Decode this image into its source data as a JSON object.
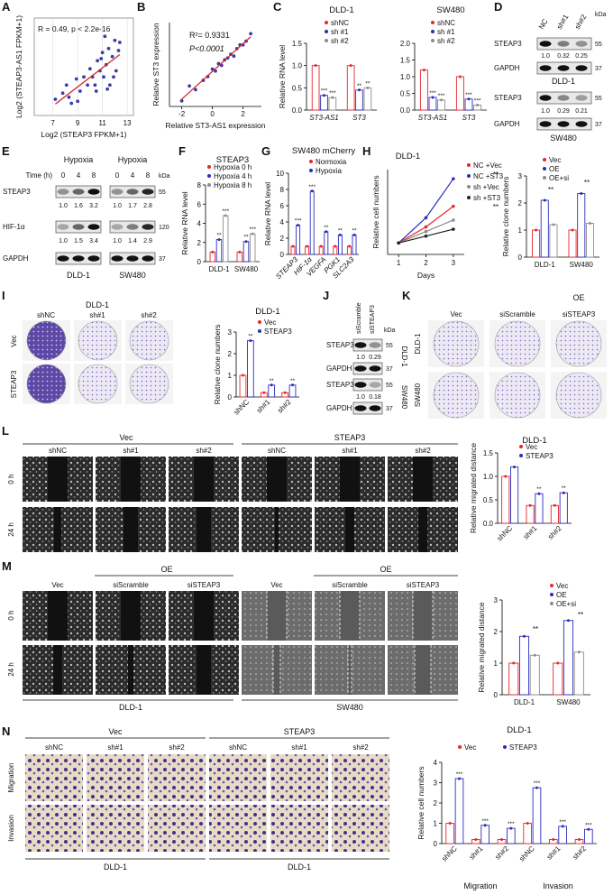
{
  "panels": [
    {
      "letter": "A",
      "charts": [
        {
          "type": "scatter",
          "xlabel": "Log2 (STEAP3 FPKM+1)",
          "ylabel": "Log2 (STEAP3-AS1 FPKM+1)",
          "annotations": [
            "R = 0.49, p < 2.2e-16"
          ],
          "xlim": [
            5.5,
            13.5
          ],
          "ylim": [
            -0.3,
            4.5
          ],
          "xticks": [
            7,
            9,
            11,
            13
          ],
          "grid": true,
          "color": "#3b3ba8",
          "fit_color": "#d42a2a",
          "x": [
            7.2,
            7.8,
            8.1,
            8.5,
            8.9,
            9.2,
            9.5,
            9.8,
            10.0,
            10.2,
            10.4,
            10.6,
            10.8,
            11.0,
            11.1,
            11.3,
            11.5,
            11.6,
            11.8,
            12.0,
            12.1,
            12.3,
            9.0,
            10.5,
            11.2,
            11.9,
            10.9,
            12.4,
            8.3,
            11.4
          ],
          "values": [
            0.5,
            0.8,
            1.2,
            0.3,
            1.5,
            0.9,
            1.6,
            1.2,
            2.0,
            1.6,
            1.2,
            2.4,
            1.9,
            2.8,
            1.6,
            2.2,
            3.0,
            1.2,
            2.6,
            3.4,
            1.9,
            2.9,
            0.4,
            0.9,
            3.6,
            1.6,
            2.5,
            3.3,
            0.6,
            1.0
          ]
        }
      ]
    },
    {
      "letter": "B",
      "charts": [
        {
          "type": "scatter",
          "xlabel": "Relative ST3-AS1 expression",
          "ylabel": "Relative ST3 expression",
          "annotations": [
            "R²= 0.9331",
            "P<0.0001"
          ],
          "xlim": [
            -2.8,
            3.2
          ],
          "ylim": [
            -1.5,
            3
          ],
          "xticks": [
            -2,
            0,
            2
          ],
          "grid": false,
          "color": "#3b3ba8",
          "fit_color": "#d42a2a",
          "x": [
            -2.0,
            -1.5,
            -1.1,
            -0.6,
            -0.3,
            0,
            0.2,
            0.4,
            0.6,
            0.8,
            1.0,
            1.2,
            1.4,
            1.6,
            1.8,
            2.0,
            2.2,
            2.5
          ],
          "values": [
            -1.2,
            -0.4,
            -0.6,
            -0.1,
            0.1,
            0.5,
            0.4,
            0.8,
            0.7,
            1.0,
            1.1,
            1.3,
            1.2,
            1.6,
            1.8,
            1.8,
            2.0,
            2.4
          ]
        }
      ]
    },
    {
      "letter": "C",
      "charts": [
        {
          "type": "bar",
          "title": "DLD-1",
          "ylabel": "Relative RNA level",
          "categories": [
            "ST3-AS1",
            "ST3"
          ],
          "ylim": [
            0,
            1.5
          ],
          "yticks": [
            {
              "value": 0,
              "label": "0.0"
            },
            0.5,
            {
              "value": 1,
              "label": "1.0"
            },
            1.5
          ],
          "series": [
            {
              "name": "shNC",
              "color": "#e8262a",
              "values": [
                1,
                1
              ]
            },
            {
              "name": "sh #1",
              "color": "#2b2bbf",
              "values": [
                0.33,
                0.45
              ],
              "sig": [
                "***",
                "**"
              ]
            },
            {
              "name": "sh #2",
              "color": "#8c8c8c",
              "values": [
                0.28,
                0.5
              ],
              "sig": [
                "***",
                "**"
              ]
            }
          ]
        },
        {
          "type": "bar",
          "title": "SW480",
          "categories": [
            "ST3-AS1",
            "ST3"
          ],
          "ylim": [
            0,
            2
          ],
          "yticks": [
            {
              "value": 0,
              "label": "0.0"
            },
            0.5,
            {
              "value": 1,
              "label": "1.0"
            },
            1.5,
            {
              "value": 2,
              "label": "2.0"
            }
          ],
          "series": [
            {
              "name": "shNC",
              "color": "#e8262a",
              "values": [
                1.2,
                1
              ]
            },
            {
              "name": "sh #1",
              "color": "#2b2bbf",
              "values": [
                0.38,
                0.33
              ],
              "sig": [
                "***",
                "***"
              ]
            },
            {
              "name": "sh #2",
              "color": "#8c8c8c",
              "values": [
                0.3,
                0.15
              ],
              "sig": [
                "***",
                "***"
              ]
            }
          ]
        }
      ]
    },
    {
      "letter": "D",
      "labels": [
        "NC",
        "sh#1",
        "sh#2",
        "kDa",
        "STEAP3",
        55,
        "1.0",
        "0.32",
        "0.25",
        "GAPDH",
        37,
        "DLD-1",
        "STEAP3",
        55,
        "1.0",
        "0.29",
        "0.21",
        "GAPDH",
        37,
        "SW480"
      ]
    },
    {
      "letter": "E",
      "labels": [
        "Hypoxia",
        "Hypoxia",
        "Time (h)",
        0,
        4,
        8,
        0,
        4,
        8,
        "kDa",
        "STEAP3",
        55,
        "1.0",
        "1.6",
        "3.2",
        "1.0",
        "1.7",
        "2.8",
        "HIF-1α",
        120,
        "1.0",
        "1.5",
        "3.4",
        "1.0",
        "1.4",
        "2.9",
        "GAPDH",
        37,
        "DLD-1",
        "SW480"
      ]
    },
    {
      "letter": "F",
      "charts": [
        {
          "type": "bar",
          "title": "STEAP3",
          "ylabel": "Relative RNA level",
          "categories": [
            "DLD-1",
            "SW480"
          ],
          "ylim": [
            0,
            8
          ],
          "yticks": [
            0,
            2,
            4,
            6,
            8
          ],
          "series": [
            {
              "name": "Hypoxia 0 h",
              "color": "#e8262a",
              "values": [
                1,
                1
              ]
            },
            {
              "name": "Hypoxia 4 h",
              "color": "#2b2bbf",
              "values": [
                2.3,
                2.1
              ],
              "sig": [
                "**",
                "**"
              ]
            },
            {
              "name": "Hypoxia 8 h",
              "color": "#8c8c8c",
              "values": [
                4.8,
                2.9
              ],
              "sig": [
                "***",
                "***"
              ]
            }
          ]
        }
      ]
    },
    {
      "letter": "G",
      "charts": [
        {
          "type": "bar",
          "title": "SW480 mCherry",
          "ylabel": "Relative RNA level",
          "categories": [
            "STEAP3",
            "HIF-1α",
            "VEGFA",
            "PGK1",
            "SLC2A3"
          ],
          "ylim": [
            0,
            10
          ],
          "yticks": [
            0,
            2,
            4,
            6,
            8,
            10
          ],
          "series": [
            {
              "name": "Normoxia",
              "color": "#e8262a",
              "values": [
                1,
                1,
                1,
                1,
                1
              ]
            },
            {
              "name": "Hypoxia",
              "color": "#2b2bbf",
              "values": [
                3.6,
                7.8,
                2.8,
                2.4,
                2.4
              ],
              "sig": [
                "***",
                "***",
                "**",
                "**",
                "**"
              ]
            }
          ]
        }
      ]
    },
    {
      "letter": "H",
      "charts": [
        {
          "type": "line",
          "title": "DLD-1",
          "xlabel": "Days",
          "ylabel": "Relative cell numbers",
          "x": [
            1,
            2,
            3
          ],
          "xlim": [
            0.6,
            3.4
          ],
          "xticks": [
            1,
            2,
            3
          ],
          "ylim": [
            0.5,
            4.2
          ],
          "annotations": [
            "**",
            "**"
          ],
          "series": [
            {
              "name": "NC +Vec",
              "color": "#e8262a",
              "values": [
                1,
                1.7,
                2.6
              ]
            },
            {
              "name": "NC +ST3",
              "color": "#2b2bbf",
              "values": [
                1,
                2.1,
                3.8
              ]
            },
            {
              "name": "sh +Vec",
              "color": "#8c8c8c",
              "values": [
                1,
                1.5,
                2.0
              ]
            },
            {
              "name": "sh +ST3",
              "color": "#222222",
              "values": [
                1,
                1.3,
                1.6
              ]
            }
          ]
        },
        {
          "type": "bar",
          "ylabel": "Relative clone numbers",
          "categories": [
            "DLD-1",
            "SW480"
          ],
          "ylim": [
            0,
            3
          ],
          "yticks": [
            0,
            1,
            2,
            3
          ],
          "annotations": [
            "**",
            "**"
          ],
          "series": [
            {
              "name": "Vec",
              "color": "#e8262a",
              "values": [
                1,
                1
              ]
            },
            {
              "name": "OE",
              "color": "#2b2bbf",
              "values": [
                2.1,
                2.35
              ]
            },
            {
              "name": "OE+si",
              "color": "#8c8c8c",
              "values": [
                1.2,
                1.25
              ]
            }
          ]
        }
      ]
    },
    {
      "letter": "I",
      "labels": [
        "DLD-1",
        "shNC",
        "sh#1",
        "sh#2",
        "Vec",
        "STEAP3"
      ],
      "charts": [
        {
          "type": "bar",
          "title": "DLD-1",
          "ylabel": "Relative clone numbers",
          "categories": [
            "shNC",
            "sh#1",
            "sh#2"
          ],
          "ylim": [
            0,
            3
          ],
          "yticks": [
            0,
            1,
            2,
            3
          ],
          "series": [
            {
              "name": "Vec",
              "color": "#e8262a",
              "values": [
                1,
                0.2,
                0.2
              ]
            },
            {
              "name": "STEAP3",
              "color": "#2b2bbf",
              "values": [
                2.6,
                0.55,
                0.55
              ],
              "sig": [
                "**",
                "**",
                "**"
              ]
            }
          ]
        }
      ]
    },
    {
      "letter": "J",
      "labels": [
        "siScramble",
        "siSTEAP3",
        "kDa",
        "STEAP3",
        55,
        "1.0",
        "0.29",
        "GAPDH",
        37,
        "STEAP3",
        55,
        "1.0",
        "0.18",
        "GAPDH",
        37,
        "DLD-1",
        "SW480"
      ]
    },
    {
      "letter": "K",
      "labels": [
        "OE",
        "Vec",
        "siScramble",
        "siSTEAP3",
        "DLD-1",
        "SW480"
      ]
    },
    {
      "letter": "L",
      "labels": [
        "Vec",
        "STEAP3",
        "shNC",
        "sh#1",
        "sh#2",
        "shNC",
        "sh#1",
        "sh#2",
        "0 h",
        "24 h"
      ],
      "charts": [
        {
          "type": "bar",
          "title": "DLD-1",
          "ylabel": "Relative migrated distance",
          "categories": [
            "shNC",
            "sh#1",
            "sh#2"
          ],
          "ylim": [
            0,
            1.5
          ],
          "yticks": [
            {
              "value": 0,
              "label": "0.0"
            },
            0.5,
            {
              "value": 1,
              "label": "1.0"
            },
            1.5
          ],
          "series": [
            {
              "name": "Vec",
              "color": "#e8262a",
              "values": [
                1.0,
                0.38,
                0.38
              ]
            },
            {
              "name": "STEAP3",
              "color": "#2b2bbf",
              "values": [
                1.2,
                0.63,
                0.65
              ],
              "sig": [
                null,
                "**",
                "**"
              ]
            }
          ]
        }
      ]
    },
    {
      "letter": "M",
      "labels": [
        "OE",
        "Vec",
        "siScramble",
        "siSTEAP3",
        "Vec",
        "siScramble",
        "siSTEAP3",
        "OE",
        "0 h",
        "24 h",
        "DLD-1",
        "SW480"
      ],
      "charts": [
        {
          "type": "bar",
          "ylabel": "Relative migrated distance",
          "categories": [
            "DLD-1",
            "SW480"
          ],
          "ylim": [
            0,
            3
          ],
          "yticks": [
            0,
            1,
            2,
            3
          ],
          "annotations": [
            "**",
            "**"
          ],
          "series": [
            {
              "name": "Vec",
              "color": "#e8262a",
              "values": [
                1,
                1
              ]
            },
            {
              "name": "OE",
              "color": "#2b2bbf",
              "values": [
                1.85,
                2.35
              ]
            },
            {
              "name": "OE+si",
              "color": "#8c8c8c",
              "values": [
                1.25,
                1.35
              ]
            }
          ]
        }
      ]
    },
    {
      "letter": "N",
      "labels": [
        "Vec",
        "STEAP3",
        "shNC",
        "sh#1",
        "sh#2",
        "shNC",
        "sh#1",
        "sh#2",
        "Migration",
        "Invasion",
        "DLD-1",
        "DLD-1"
      ],
      "charts": [
        {
          "type": "bar",
          "title": "DLD-1",
          "ylabel": "Relative cell numbers",
          "categories": [
            "shNC",
            "sh#1",
            "sh#2",
            "shNC",
            "sh#1",
            "sh#2"
          ],
          "groups": [
            "Migration",
            "Invasion"
          ],
          "ylim": [
            0,
            4
          ],
          "yticks": [
            0,
            1,
            2,
            3,
            4
          ],
          "series": [
            {
              "name": "Vec",
              "color": "#e8262a",
              "values": [
                1,
                0.2,
                0.2,
                1,
                0.2,
                0.2
              ]
            },
            {
              "name": "STEAP3",
              "color": "#2b2bbf",
              "values": [
                3.2,
                0.9,
                0.75,
                2.75,
                0.85,
                0.7
              ],
              "sig": [
                "***",
                "***",
                "***",
                "***",
                "***",
                "***"
              ]
            }
          ]
        }
      ]
    }
  ]
}
